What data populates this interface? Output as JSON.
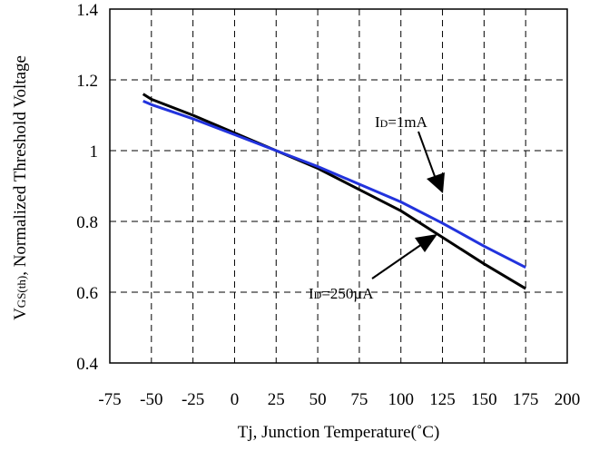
{
  "chart_data": {
    "type": "line",
    "title": "",
    "xlabel": "Tj, Junction Temperature(˚C)",
    "ylabel_main": "V",
    "ylabel_sub": "GS(th)",
    "ylabel_rest": ", Normalized Threshold Voltage",
    "xlim": [
      -75,
      200
    ],
    "ylim": [
      0.4,
      1.4
    ],
    "x_ticks": [
      -75,
      -50,
      -25,
      0,
      25,
      50,
      75,
      100,
      125,
      150,
      175,
      200
    ],
    "x_tick_labels": [
      "-75",
      "-50",
      "-25",
      "0",
      "25",
      "50",
      "75",
      "100",
      "125",
      "150",
      "175",
      "200"
    ],
    "y_ticks": [
      0.4,
      0.6,
      0.8,
      1.0,
      1.2,
      1.4
    ],
    "y_tick_labels": [
      "0.4",
      "0.6",
      "0.8",
      "1",
      "1.2",
      "1.4"
    ],
    "grid": true,
    "series": [
      {
        "name": "ID=250µA",
        "color": "#000000",
        "x": [
          -55,
          -50,
          -25,
          0,
          25,
          50,
          75,
          100,
          125,
          150,
          175
        ],
        "y": [
          1.16,
          1.145,
          1.1,
          1.05,
          1.0,
          0.95,
          0.89,
          0.83,
          0.755,
          0.68,
          0.61
        ]
      },
      {
        "name": "ID=1mA",
        "color": "#2233dd",
        "x": [
          -55,
          -50,
          -25,
          0,
          25,
          50,
          75,
          100,
          125,
          150,
          175
        ],
        "y": [
          1.14,
          1.13,
          1.09,
          1.045,
          1.0,
          0.955,
          0.905,
          0.855,
          0.795,
          0.73,
          0.67
        ]
      }
    ],
    "annotations": [
      {
        "label_main": "I",
        "label_sub": "D",
        "label_rest": "=1mA",
        "target_series": "ID=1mA",
        "anchor": "above-right"
      },
      {
        "label_main": "I",
        "label_sub": "D",
        "label_rest": "=250µA",
        "target_series": "ID=250µA",
        "anchor": "below-left"
      }
    ]
  }
}
